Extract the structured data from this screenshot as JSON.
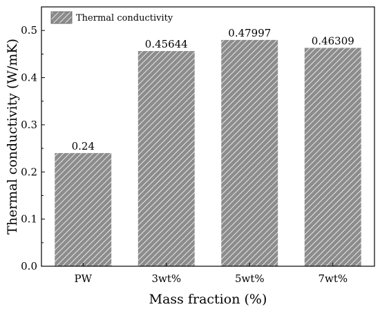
{
  "chart_data": {
    "type": "bar",
    "categories": [
      "PW",
      "3wt%",
      "5wt%",
      "7wt%"
    ],
    "values": [
      0.24,
      0.45644,
      0.47997,
      0.46309
    ],
    "data_labels": [
      "0.24",
      "0.45644",
      "0.47997",
      "0.46309"
    ],
    "xlabel": "Mass fraction (%)",
    "ylabel": "Thermal conductivity (W/mK)",
    "ylim": [
      0,
      0.55
    ],
    "yticks": [
      0.0,
      0.1,
      0.2,
      0.3,
      0.4,
      0.5
    ],
    "ytick_labels": [
      "0.0",
      "0.1",
      "0.2",
      "0.3",
      "0.4",
      "0.5"
    ],
    "grid": false,
    "legend": {
      "placement": "top-left",
      "entries": [
        {
          "label": "Thermal conductivity"
        }
      ]
    },
    "colors": {
      "bar_fill": "#8c8c8c",
      "bar_hatch": "#ffffff",
      "axis": "#000000"
    }
  }
}
